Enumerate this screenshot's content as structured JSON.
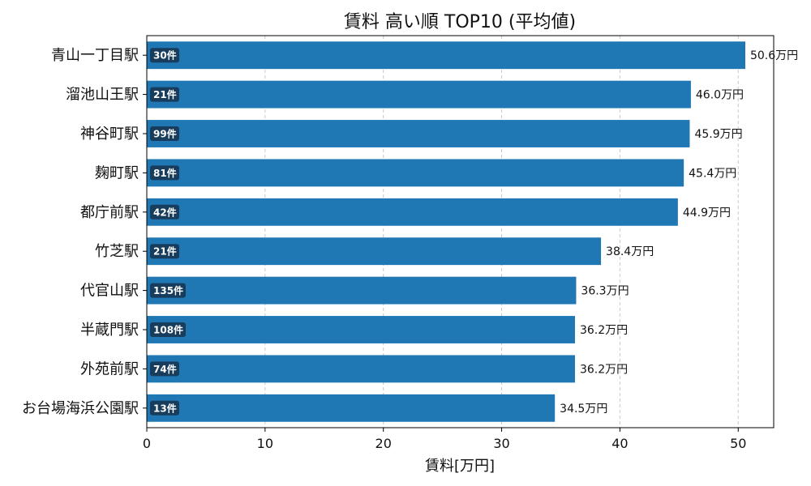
{
  "chart_data": {
    "type": "bar",
    "orientation": "horizontal",
    "title": "賃料 高い順 TOP10 (平均値)",
    "xlabel": "賃料[万円]",
    "ylabel": "",
    "xlim": [
      0,
      53
    ],
    "xticks": [
      "0",
      "10",
      "20",
      "30",
      "40",
      "50"
    ],
    "grid": "vertical-dashed",
    "bar_color": "#1f77b4",
    "badge_color": "#173c5c",
    "value_suffix": "万円",
    "categories": [
      "青山一丁目駅",
      "溜池山王駅",
      "神谷町駅",
      "麹町駅",
      "都庁前駅",
      "竹芝駅",
      "代官山駅",
      "半蔵門駅",
      "外苑前駅",
      "お台場海浜公園駅"
    ],
    "values": [
      50.6,
      46.0,
      45.9,
      45.4,
      44.9,
      38.4,
      36.3,
      36.2,
      36.2,
      34.5
    ],
    "counts": [
      "30件",
      "21件",
      "99件",
      "81件",
      "42件",
      "21件",
      "135件",
      "108件",
      "74件",
      "13件"
    ]
  }
}
